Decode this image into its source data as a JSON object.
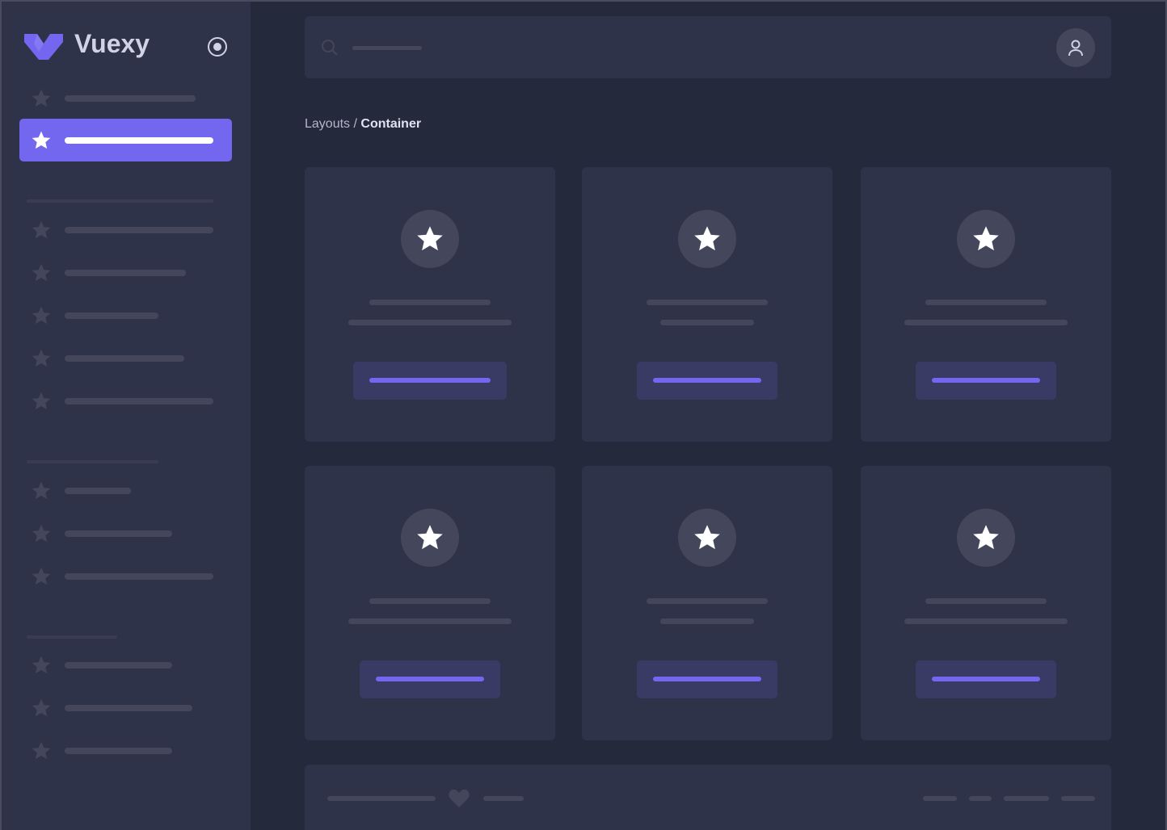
{
  "brand": {
    "name": "Vuexy",
    "logo_color": "#7367f0",
    "icon": "v-logo-icon",
    "pin_icon": "radio-circle-icon"
  },
  "header": {
    "search_icon": "search-icon",
    "user_icon": "user-icon"
  },
  "breadcrumb": {
    "parent": "Layouts",
    "separator": " / ",
    "current": "Container"
  },
  "colors": {
    "accent": "#7367f0",
    "background": "#25293c",
    "surface": "#2f3349",
    "placeholder": "#44475b"
  },
  "footer": {
    "icon": "heart-icon"
  }
}
